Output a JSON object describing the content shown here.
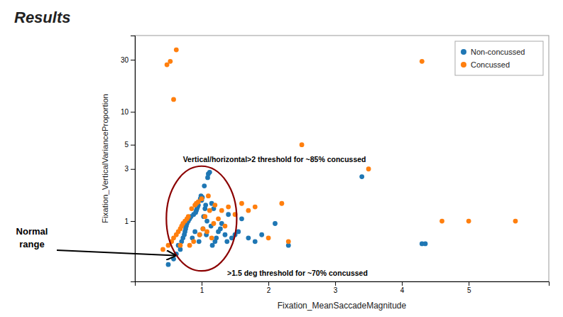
{
  "chart_data": {
    "type": "scatter",
    "title": "Results",
    "x_label": "Fixation_MeanSaccadeMagnitude",
    "y_label": "Fixation_VerticalVarianceProportion",
    "annotations": [
      "Vertical/horizontal>2 threshold for ~85% concussed",
      ">1.5 deg threshold for ~70% concussed",
      "Normal\nrange"
    ],
    "log": "y",
    "grid": false,
    "legend": "upper right",
    "xlim": [
      0.0,
      6.2
    ],
    "ylim": [
      0.28,
      50
    ],
    "xticks": [
      1,
      2,
      3,
      4,
      5
    ],
    "yticks": [
      1,
      3,
      5,
      10,
      30
    ],
    "series": [
      {
        "name": "Non-concussed",
        "color": "#1F77B4",
        "x": [
          0.5,
          0.58,
          0.62,
          0.65,
          0.68,
          0.7,
          0.72,
          0.74,
          0.75,
          0.76,
          0.77,
          0.78,
          0.8,
          0.82,
          0.84,
          0.86,
          0.88,
          0.9,
          0.91,
          0.92,
          0.93,
          0.94,
          0.95,
          0.96,
          0.97,
          0.98,
          0.99,
          1.0,
          1.01,
          1.02,
          1.03,
          1.04,
          1.05,
          1.06,
          1.07,
          1.08,
          1.09,
          1.1,
          1.12,
          1.14,
          1.15,
          1.16,
          1.18,
          1.2,
          1.22,
          1.25,
          1.28,
          1.3,
          1.35,
          1.38,
          1.4,
          1.45,
          1.5,
          1.55,
          1.6,
          1.7,
          1.8,
          1.9,
          2.1,
          2.3,
          3.4,
          4.3,
          4.35
        ],
        "values": [
          0.4,
          0.45,
          0.5,
          0.6,
          0.55,
          0.65,
          0.7,
          0.75,
          0.8,
          0.85,
          0.9,
          0.95,
          1.0,
          1.05,
          1.1,
          0.7,
          1.15,
          0.8,
          1.2,
          1.25,
          1.3,
          1.35,
          1.4,
          0.65,
          0.75,
          1.6,
          1.7,
          1.55,
          1.65,
          0.85,
          1.1,
          2.1,
          1.3,
          1.4,
          0.75,
          1.0,
          2.5,
          2.7,
          2.8,
          0.9,
          1.45,
          0.6,
          1.3,
          0.65,
          0.7,
          0.8,
          0.85,
          0.95,
          0.75,
          0.65,
          1.15,
          0.7,
          0.75,
          0.8,
          1.05,
          0.7,
          0.65,
          0.75,
          0.95,
          0.6,
          2.55,
          0.62,
          0.62
        ]
      },
      {
        "name": "Concussed",
        "color": "#FF7F0E",
        "x": [
          0.42,
          0.5,
          0.55,
          0.58,
          0.62,
          0.65,
          0.68,
          0.7,
          0.72,
          0.75,
          0.78,
          0.8,
          0.82,
          0.85,
          0.88,
          0.9,
          0.92,
          0.95,
          0.97,
          1.0,
          1.02,
          1.05,
          1.08,
          1.1,
          1.12,
          1.15,
          1.18,
          1.2,
          1.25,
          1.3,
          1.35,
          1.4,
          1.5,
          1.6,
          1.7,
          1.8,
          2.0,
          2.2,
          2.3,
          2.5,
          3.5,
          4.3,
          4.6,
          5.0,
          5.7,
          0.48,
          0.53,
          0.58,
          0.62,
          0.68
        ],
        "values": [
          0.55,
          0.6,
          0.65,
          0.7,
          0.75,
          0.8,
          0.85,
          0.9,
          0.95,
          1.0,
          1.05,
          1.1,
          0.6,
          1.3,
          0.65,
          1.4,
          1.45,
          1.5,
          0.75,
          1.6,
          0.85,
          1.1,
          0.8,
          1.7,
          1.25,
          0.7,
          0.95,
          1.4,
          1.05,
          1.25,
          0.9,
          1.35,
          1.15,
          1.45,
          1.25,
          1.35,
          0.7,
          1.45,
          0.65,
          5.0,
          3.0,
          29.0,
          1.0,
          1.0,
          1.0,
          27.0,
          29.0,
          13.0,
          37.0,
          0.6
        ]
      }
    ]
  }
}
